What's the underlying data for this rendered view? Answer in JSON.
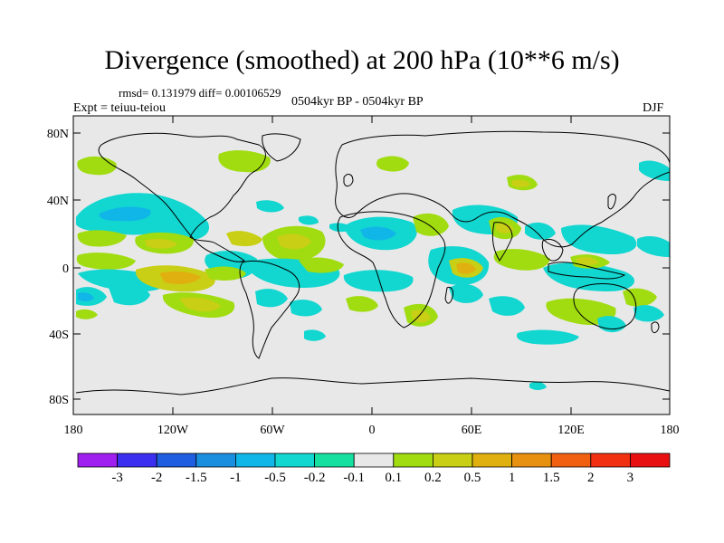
{
  "title": "Divergence (smoothed) at 200 hPa (10**6 m/s)",
  "stats": "rmsd= 0.131979 diff= 0.00106529",
  "left_label": "Expt = teiuu-teiou",
  "center_label": "0504kyr BP - 0504kyr BP",
  "right_label": "DJF",
  "axes": {
    "x_ticks": [
      "180",
      "120W",
      "60W",
      "0",
      "60E",
      "120E",
      "180"
    ],
    "y_ticks": [
      "80N",
      "40N",
      "0",
      "40S",
      "80S"
    ]
  },
  "colorbar": {
    "labels": [
      "-3",
      "-2",
      "-1.5",
      "-1",
      "-0.5",
      "-0.2",
      "-0.1",
      "0.1",
      "0.2",
      "0.5",
      "1",
      "1.5",
      "2",
      "3"
    ],
    "colors": [
      "#a020f0",
      "#3c2ff0",
      "#1f5ee0",
      "#1a8fe0",
      "#10b6e8",
      "#12d6d0",
      "#16e0a0",
      "#e8e8e8",
      "#a0dc10",
      "#c8cf14",
      "#e0b010",
      "#e89010",
      "#f06010",
      "#f03010",
      "#e81010"
    ]
  },
  "colors": {
    "map_background": "#e8e8e8",
    "coast": "#000000"
  }
}
